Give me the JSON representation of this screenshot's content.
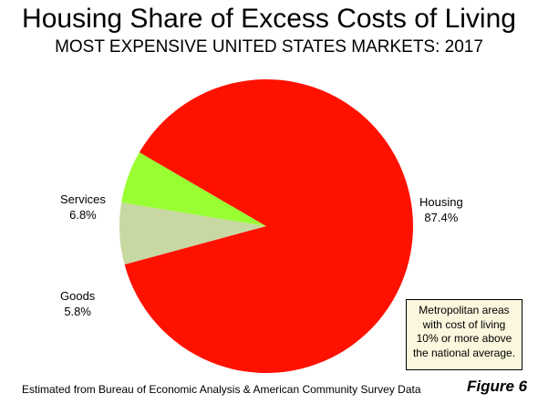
{
  "chart_data": {
    "type": "pie",
    "title": "Housing Share of Excess Costs of Living",
    "subtitle": "MOST EXPENSIVE UNITED STATES MARKETS: 2017",
    "slices": [
      {
        "name": "Services",
        "value": 6.8,
        "label": "6.8%",
        "color": "#c8d8a2"
      },
      {
        "name": "Goods",
        "value": 5.8,
        "label": "5.8%",
        "color": "#99ff33"
      },
      {
        "name": "Housing",
        "value": 87.4,
        "label": "87.4%",
        "color": "#ff1100"
      }
    ],
    "annotation": [
      "Metropolitan areas",
      "with cost of living",
      "10% or more above",
      "the national average."
    ],
    "source": "Estimated from Bureau of Economic Analysis & American Community Survey Data",
    "figure_label": "Figure 6"
  }
}
